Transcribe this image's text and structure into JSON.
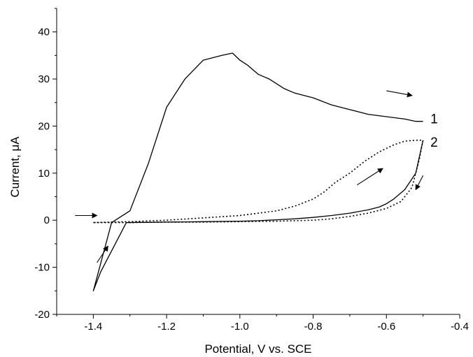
{
  "chart_data": {
    "type": "line",
    "xlabel": "Potential, V vs. SCE",
    "ylabel": "Current, μA",
    "xlim": [
      -1.5,
      -0.4
    ],
    "ylim": [
      -20,
      45
    ],
    "xticks": [
      -1.4,
      -1.2,
      -1.0,
      -0.8,
      -0.6,
      -0.4
    ],
    "xtick_labels": [
      "-1.4",
      "-1.2",
      "-1.0",
      "-0.8",
      "-0.6",
      "-0.4"
    ],
    "yticks": [
      -20,
      -10,
      0,
      10,
      20,
      30,
      40
    ],
    "ytick_labels": [
      "-20",
      "-10",
      "0",
      "10",
      "20",
      "30",
      "40"
    ],
    "grid": false,
    "legend": "none",
    "series": [
      {
        "name": "1",
        "style": "solid",
        "color": "#000000",
        "x": [
          -0.5,
          -0.52,
          -0.55,
          -0.58,
          -0.6,
          -0.62,
          -0.65,
          -0.7,
          -0.75,
          -0.8,
          -0.85,
          -0.9,
          -0.95,
          -1.0,
          -1.05,
          -1.1,
          -1.15,
          -1.2,
          -1.25,
          -1.28,
          -1.3,
          -1.31,
          -1.32,
          -1.34,
          -1.36,
          -1.38,
          -1.39,
          -1.4,
          -1.35,
          -1.3,
          -1.25,
          -1.2,
          -1.15,
          -1.1,
          -1.05,
          -1.02,
          -1.0,
          -0.98,
          -0.95,
          -0.92,
          -0.9,
          -0.88,
          -0.85,
          -0.8,
          -0.75,
          -0.7,
          -0.65,
          -0.6,
          -0.55,
          -0.52,
          -0.5
        ],
        "y": [
          17.0,
          10.0,
          6.5,
          4.5,
          3.5,
          2.8,
          2.2,
          1.5,
          1.0,
          0.6,
          0.3,
          0.1,
          -0.1,
          -0.2,
          -0.25,
          -0.3,
          -0.35,
          -0.4,
          -0.45,
          -0.45,
          -0.5,
          -0.5,
          -2.0,
          -5.0,
          -8.0,
          -11.0,
          -13.0,
          -15.0,
          -0.5,
          2.0,
          12.0,
          24.0,
          30.0,
          34.0,
          35.0,
          35.5,
          34.0,
          33.0,
          31.0,
          30.0,
          29.0,
          28.0,
          27.0,
          26.0,
          24.5,
          23.5,
          22.5,
          22.0,
          21.5,
          21.0,
          21.0
        ]
      },
      {
        "name": "2",
        "style": "dotted",
        "color": "#000000",
        "x": [
          -1.4,
          -1.35,
          -1.3,
          -1.2,
          -1.1,
          -1.0,
          -0.9,
          -0.85,
          -0.8,
          -0.77,
          -0.74,
          -0.7,
          -0.66,
          -0.62,
          -0.58,
          -0.55,
          -0.52,
          -0.5,
          -0.51,
          -0.53,
          -0.56,
          -0.6,
          -0.65,
          -0.7,
          -0.75,
          -0.8,
          -0.9,
          -1.0,
          -1.1,
          -1.2,
          -1.3,
          -1.35,
          -1.4
        ],
        "y": [
          -0.5,
          -0.4,
          -0.3,
          0.0,
          0.5,
          1.0,
          2.0,
          3.0,
          4.5,
          6.0,
          8.0,
          10.0,
          12.5,
          14.5,
          16.0,
          16.8,
          17.0,
          17.0,
          13.0,
          7.0,
          4.0,
          2.5,
          1.5,
          0.8,
          0.3,
          0.0,
          -0.2,
          -0.3,
          -0.4,
          -0.4,
          -0.5,
          -0.5,
          -0.5
        ]
      }
    ],
    "annotations": [
      {
        "type": "label",
        "text": "1",
        "x": -0.48,
        "y": 21.5
      },
      {
        "type": "label",
        "text": "2",
        "x": -0.48,
        "y": 16.5
      },
      {
        "type": "arrow",
        "from": [
          -0.6,
          27.5
        ],
        "to": [
          -0.53,
          26.5
        ]
      },
      {
        "type": "arrow",
        "from": [
          -0.68,
          7.5
        ],
        "to": [
          -0.61,
          11.0
        ]
      },
      {
        "type": "arrow",
        "from": [
          -0.5,
          9.5
        ],
        "to": [
          -0.52,
          6.5
        ]
      },
      {
        "type": "arrow",
        "from": [
          -1.45,
          1.0
        ],
        "to": [
          -1.39,
          1.0
        ]
      },
      {
        "type": "arrow",
        "from": [
          -1.39,
          -9.0
        ],
        "to": [
          -1.36,
          -5.5
        ]
      }
    ]
  }
}
